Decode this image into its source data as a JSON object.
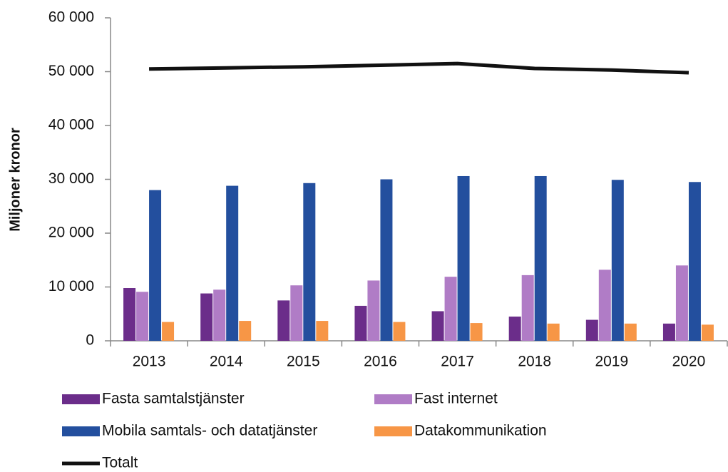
{
  "chart_data": {
    "type": "bar",
    "y_label": "Miljoner kronor",
    "categories": [
      "2013",
      "2014",
      "2015",
      "2016",
      "2017",
      "2018",
      "2019",
      "2020"
    ],
    "series": [
      {
        "name": "Fasta samtalstjänster",
        "color": "#6b2d8a",
        "values": [
          9800,
          8800,
          7500,
          6500,
          5500,
          4500,
          3900,
          3200
        ]
      },
      {
        "name": "Fast internet",
        "color": "#b07cc6",
        "values": [
          9100,
          9500,
          10300,
          11200,
          11900,
          12200,
          13200,
          14000
        ]
      },
      {
        "name": "Mobila samtals- och datatjänster",
        "color": "#234f9e",
        "values": [
          28000,
          28800,
          29300,
          30000,
          30600,
          30600,
          29900,
          29500
        ]
      },
      {
        "name": "Datakommunikation",
        "color": "#f79646",
        "values": [
          3500,
          3700,
          3700,
          3500,
          3300,
          3200,
          3200,
          3000
        ]
      },
      {
        "name": "Totalt",
        "color": "#111111",
        "type": "line",
        "values": [
          50500,
          50700,
          50900,
          51200,
          51500,
          50600,
          50300,
          49800
        ]
      }
    ],
    "ylim": [
      0,
      60000
    ],
    "yticks": [
      0,
      {
        "value": 10000,
        "label": "10 000"
      },
      {
        "value": 20000,
        "label": "20 000"
      },
      {
        "value": 30000,
        "label": "30 000"
      },
      {
        "value": 40000,
        "label": "40 000"
      },
      {
        "value": 50000,
        "label": "50 000"
      },
      {
        "value": 60000,
        "label": "60 000"
      }
    ],
    "grid": false
  }
}
